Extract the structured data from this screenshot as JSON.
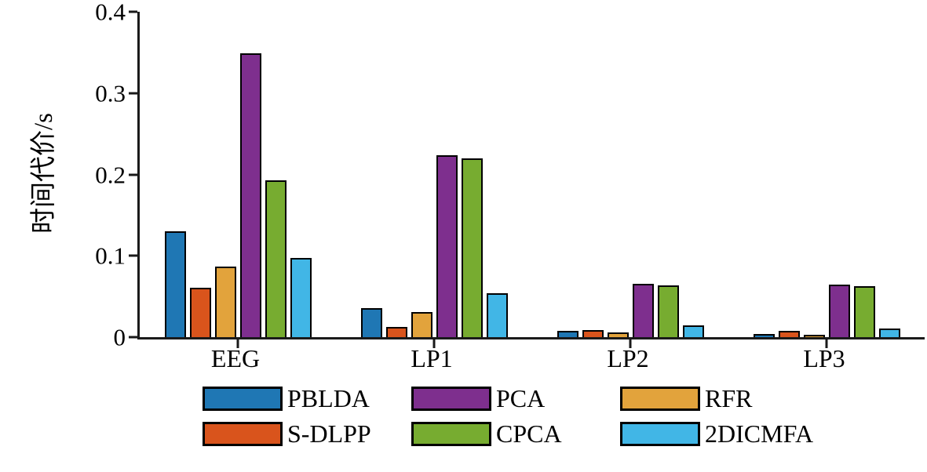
{
  "chart_data": {
    "type": "bar",
    "title": "",
    "xlabel": "",
    "ylabel": "时间代价/s",
    "ylim": [
      0,
      0.4
    ],
    "yticks": [
      0,
      0.1,
      0.2,
      0.3,
      0.4
    ],
    "grid": false,
    "legend_position": "bottom",
    "categories": [
      "EEG",
      "LP1",
      "LP2",
      "LP3"
    ],
    "series": [
      {
        "name": "PBLDA",
        "color": "#1F77B4",
        "values": [
          0.13,
          0.036,
          0.008,
          0.004
        ]
      },
      {
        "name": "S-DLPP",
        "color": "#D9541C",
        "values": [
          0.061,
          0.013,
          0.009,
          0.008
        ]
      },
      {
        "name": "RFR",
        "color": "#E2A33C",
        "values": [
          0.087,
          0.031,
          0.006,
          0.003
        ]
      },
      {
        "name": "PCA",
        "color": "#7E2F8E",
        "values": [
          0.349,
          0.224,
          0.066,
          0.065
        ]
      },
      {
        "name": "CPCA",
        "color": "#77AC30",
        "values": [
          0.193,
          0.22,
          0.064,
          0.063
        ]
      },
      {
        "name": "2DICMFA",
        "color": "#41B6E6",
        "values": [
          0.097,
          0.054,
          0.014,
          0.011
        ]
      }
    ],
    "legend_rows": [
      [
        "PBLDA",
        "PCA",
        "RFR"
      ],
      [
        "S-DLPP",
        "CPCA",
        "2DICMFA"
      ]
    ]
  }
}
